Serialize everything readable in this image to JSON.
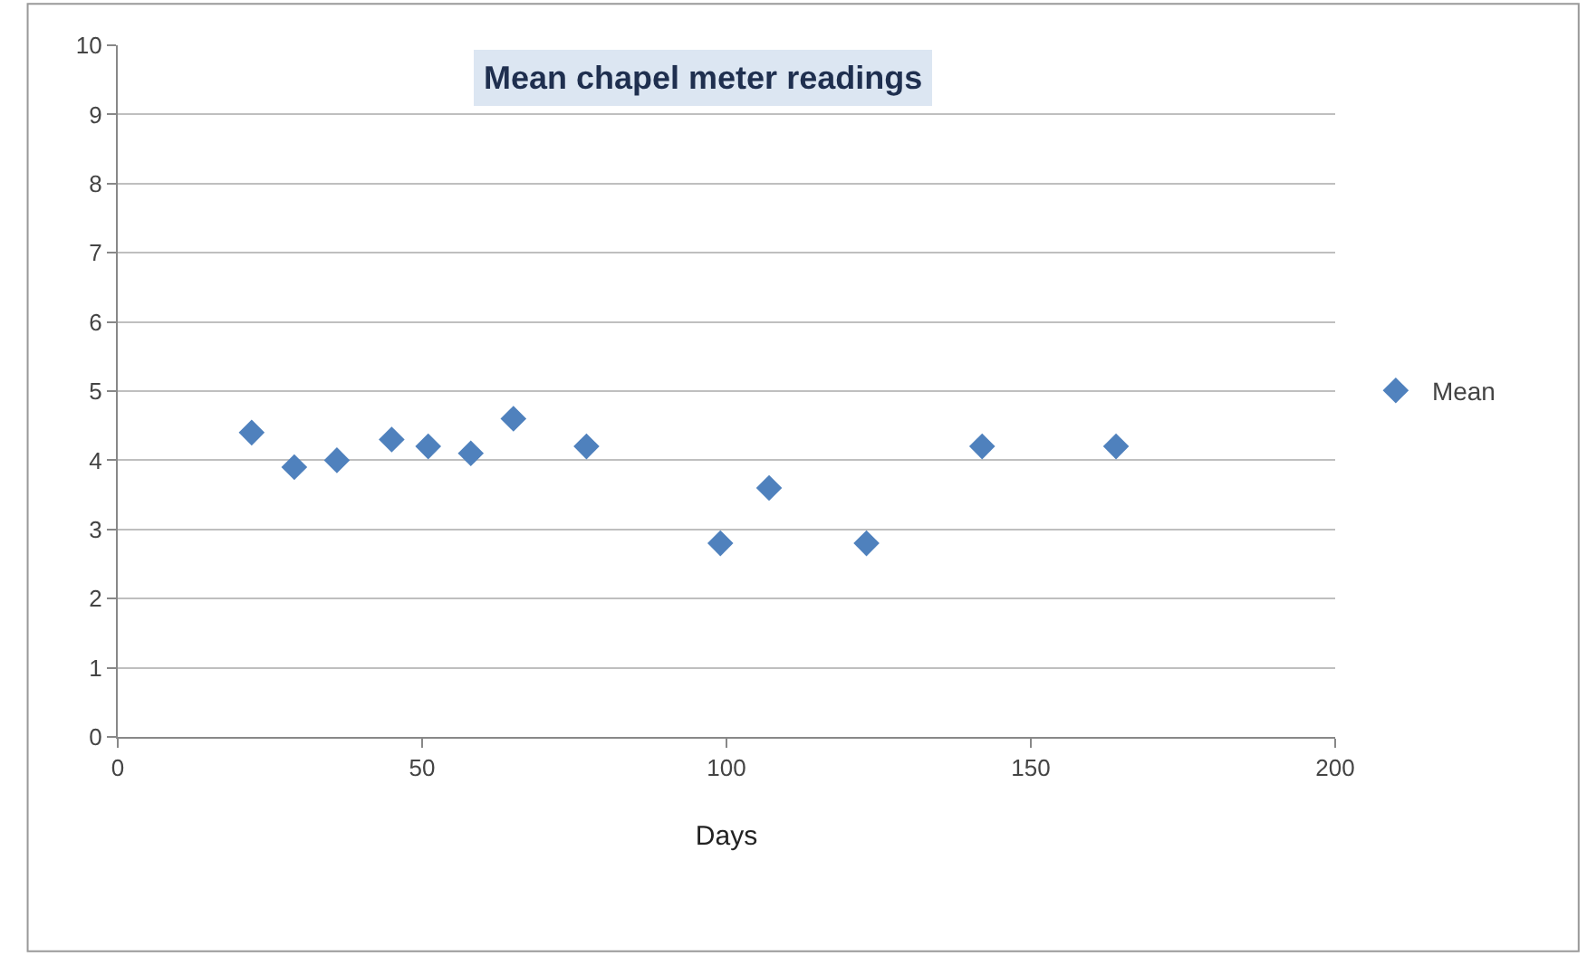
{
  "chart_data": {
    "type": "scatter",
    "title": "Mean chapel meter readings",
    "xlabel": "Days",
    "series": [
      {
        "name": "Mean",
        "color": "#4f81bd",
        "x": [
          22,
          29,
          36,
          45,
          51,
          58,
          65,
          77,
          99,
          107,
          123,
          142,
          164
        ],
        "values": [
          4.4,
          3.9,
          4.0,
          4.3,
          4.2,
          4.1,
          4.6,
          4.2,
          2.8,
          3.6,
          2.8,
          4.2,
          4.2
        ]
      }
    ],
    "xlim": [
      0,
      200
    ],
    "xticks": [
      0,
      50,
      100,
      150,
      200
    ],
    "ylim": [
      0,
      10
    ],
    "yticks": [
      0,
      1,
      2,
      3,
      4,
      5,
      6,
      7,
      8,
      9,
      10
    ],
    "grid": "y",
    "legend": "right",
    "marker": "diamond"
  }
}
